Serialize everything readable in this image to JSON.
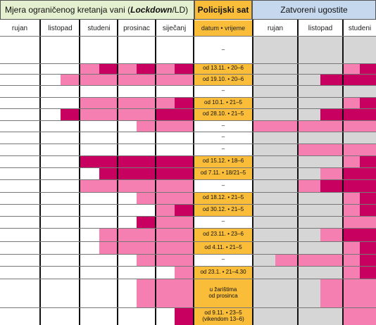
{
  "header": {
    "lockdown_prefix": "Mjera ograničenog kretanja vani (",
    "lockdown_em": "Lockdown",
    "lockdown_suffix": "/LD)",
    "curfew_title": "Policijski sat",
    "closed_title": "Zatvoreni ugostite"
  },
  "subheader": {
    "lockdown_months": [
      "rujan",
      "listopad",
      "studeni",
      "prosinac",
      "siječanj"
    ],
    "curfew_label": "datum • vrijeme",
    "closed_months": [
      "rujan",
      "listopad",
      "studeni"
    ]
  },
  "legend_colors": {
    "none": "#ffffff",
    "partial": "#f47fb0",
    "full": "#c8005f",
    "not_applicable": "#d6d6d6",
    "curfew": "#f9bd3a"
  },
  "rows": [
    {
      "curfew": "–",
      "ld": [
        [
          0,
          0
        ],
        [
          0,
          0
        ],
        [
          0,
          0
        ],
        [
          0,
          0
        ],
        [
          0,
          0
        ]
      ],
      "cl": [
        [
          3,
          3
        ],
        [
          3,
          3
        ],
        [
          3,
          3
        ]
      ]
    },
    {
      "curfew": "od 13.11. • 20–6",
      "ld": [
        [
          0,
          0
        ],
        [
          0,
          0
        ],
        [
          1,
          2
        ],
        [
          1,
          2
        ],
        [
          1,
          2
        ]
      ],
      "cl": [
        [
          3,
          3
        ],
        [
          3,
          3
        ],
        [
          1,
          2
        ]
      ]
    },
    {
      "curfew": "od 19.10. • 20–6",
      "ld": [
        [
          0,
          0
        ],
        [
          0,
          1
        ],
        [
          1,
          1
        ],
        [
          1,
          1
        ],
        [
          1,
          1
        ]
      ],
      "cl": [
        [
          3,
          3
        ],
        [
          3,
          2
        ],
        [
          2,
          2
        ]
      ]
    },
    {
      "curfew": "–",
      "ld": [
        [
          0,
          0
        ],
        [
          0,
          0
        ],
        [
          0,
          0
        ],
        [
          0,
          0
        ],
        [
          0,
          0
        ]
      ],
      "cl": [
        [
          3,
          3
        ],
        [
          3,
          3
        ],
        [
          3,
          3
        ]
      ]
    },
    {
      "curfew": "od 10.1. • 21–5",
      "ld": [
        [
          0,
          0
        ],
        [
          0,
          0
        ],
        [
          1,
          1
        ],
        [
          1,
          1
        ],
        [
          1,
          2
        ]
      ],
      "cl": [
        [
          3,
          3
        ],
        [
          3,
          3
        ],
        [
          1,
          2
        ]
      ]
    },
    {
      "curfew": "od 28.10. • 21–5",
      "ld": [
        [
          0,
          0
        ],
        [
          0,
          2
        ],
        [
          1,
          1
        ],
        [
          1,
          1
        ],
        [
          2,
          2
        ]
      ],
      "cl": [
        [
          3,
          3
        ],
        [
          3,
          2
        ],
        [
          2,
          2
        ]
      ]
    },
    {
      "curfew": "–",
      "ld": [
        [
          0,
          0
        ],
        [
          0,
          0
        ],
        [
          0,
          0
        ],
        [
          0,
          1
        ],
        [
          1,
          1
        ]
      ],
      "cl": [
        [
          1,
          1
        ],
        [
          1,
          1
        ],
        [
          1,
          1
        ]
      ]
    },
    {
      "curfew": "–",
      "ld": [
        [
          0,
          0
        ],
        [
          0,
          0
        ],
        [
          0,
          0
        ],
        [
          0,
          0
        ],
        [
          0,
          0
        ]
      ],
      "cl": [
        [
          3,
          3
        ],
        [
          3,
          3
        ],
        [
          3,
          3
        ]
      ]
    },
    {
      "curfew": "–",
      "ld": [
        [
          0,
          0
        ],
        [
          0,
          0
        ],
        [
          0,
          0
        ],
        [
          0,
          0
        ],
        [
          0,
          0
        ]
      ],
      "cl": [
        [
          3,
          3
        ],
        [
          1,
          1
        ],
        [
          1,
          1
        ]
      ]
    },
    {
      "curfew": "od 15.12. • 18–6",
      "ld": [
        [
          0,
          0
        ],
        [
          0,
          0
        ],
        [
          2,
          2
        ],
        [
          2,
          2
        ],
        [
          2,
          2
        ]
      ],
      "cl": [
        [
          3,
          3
        ],
        [
          3,
          3
        ],
        [
          1,
          2
        ]
      ]
    },
    {
      "curfew": "od 7.11. • 18/21–5",
      "ld": [
        [
          0,
          0
        ],
        [
          0,
          0
        ],
        [
          0,
          2
        ],
        [
          2,
          2
        ],
        [
          2,
          2
        ]
      ],
      "cl": [
        [
          3,
          3
        ],
        [
          3,
          1
        ],
        [
          2,
          2
        ]
      ]
    },
    {
      "curfew": "–",
      "ld": [
        [
          0,
          0
        ],
        [
          0,
          0
        ],
        [
          1,
          1
        ],
        [
          1,
          1
        ],
        [
          1,
          1
        ]
      ],
      "cl": [
        [
          3,
          3
        ],
        [
          1,
          2
        ],
        [
          2,
          2
        ]
      ]
    },
    {
      "curfew": "od 18.12. • 21–5",
      "ld": [
        [
          0,
          0
        ],
        [
          0,
          0
        ],
        [
          0,
          0
        ],
        [
          0,
          1
        ],
        [
          1,
          1
        ]
      ],
      "cl": [
        [
          3,
          3
        ],
        [
          3,
          3
        ],
        [
          1,
          2
        ]
      ]
    },
    {
      "curfew": "od 30.12. • 21–5",
      "ld": [
        [
          0,
          0
        ],
        [
          0,
          0
        ],
        [
          0,
          0
        ],
        [
          0,
          0
        ],
        [
          1,
          2
        ]
      ],
      "cl": [
        [
          3,
          3
        ],
        [
          3,
          3
        ],
        [
          1,
          2
        ]
      ]
    },
    {
      "curfew": "–",
      "ld": [
        [
          0,
          0
        ],
        [
          0,
          0
        ],
        [
          0,
          0
        ],
        [
          0,
          2
        ],
        [
          1,
          1
        ]
      ],
      "cl": [
        [
          3,
          3
        ],
        [
          3,
          3
        ],
        [
          1,
          1
        ]
      ]
    },
    {
      "curfew": "od 23.11. • 23–6",
      "ld": [
        [
          0,
          0
        ],
        [
          0,
          0
        ],
        [
          0,
          1
        ],
        [
          1,
          1
        ],
        [
          1,
          1
        ]
      ],
      "cl": [
        [
          3,
          3
        ],
        [
          3,
          1
        ],
        [
          2,
          2
        ]
      ]
    },
    {
      "curfew": "od 4.11. • 21–5",
      "ld": [
        [
          0,
          0
        ],
        [
          0,
          0
        ],
        [
          0,
          1
        ],
        [
          1,
          1
        ],
        [
          1,
          1
        ]
      ],
      "cl": [
        [
          3,
          3
        ],
        [
          3,
          3
        ],
        [
          1,
          2
        ]
      ]
    },
    {
      "curfew": "–",
      "ld": [
        [
          0,
          0
        ],
        [
          0,
          0
        ],
        [
          0,
          0
        ],
        [
          0,
          1
        ],
        [
          1,
          1
        ]
      ],
      "cl": [
        [
          3,
          1
        ],
        [
          1,
          1
        ],
        [
          1,
          2
        ]
      ]
    },
    {
      "curfew": "od 23.1. • 21–4.30",
      "ld": [
        [
          0,
          0
        ],
        [
          0,
          0
        ],
        [
          0,
          0
        ],
        [
          0,
          0
        ],
        [
          0,
          1
        ]
      ],
      "cl": [
        [
          3,
          3
        ],
        [
          3,
          3
        ],
        [
          1,
          2
        ]
      ]
    },
    {
      "curfew": "u žarištima\nod prosinca",
      "ld": [
        [
          0,
          0
        ],
        [
          0,
          0
        ],
        [
          0,
          0
        ],
        [
          0,
          1
        ],
        [
          1,
          1
        ]
      ],
      "cl": [
        [
          3,
          3
        ],
        [
          3,
          1
        ],
        [
          1,
          1
        ]
      ]
    },
    {
      "curfew": "od 9.11. • 23–5\n(vikendom 13–6)",
      "ld": [
        [
          0,
          0
        ],
        [
          0,
          0
        ],
        [
          0,
          0
        ],
        [
          0,
          0
        ],
        [
          0,
          2
        ]
      ],
      "cl": [
        [
          3,
          3
        ],
        [
          3,
          3
        ],
        [
          1,
          1
        ]
      ]
    }
  ]
}
